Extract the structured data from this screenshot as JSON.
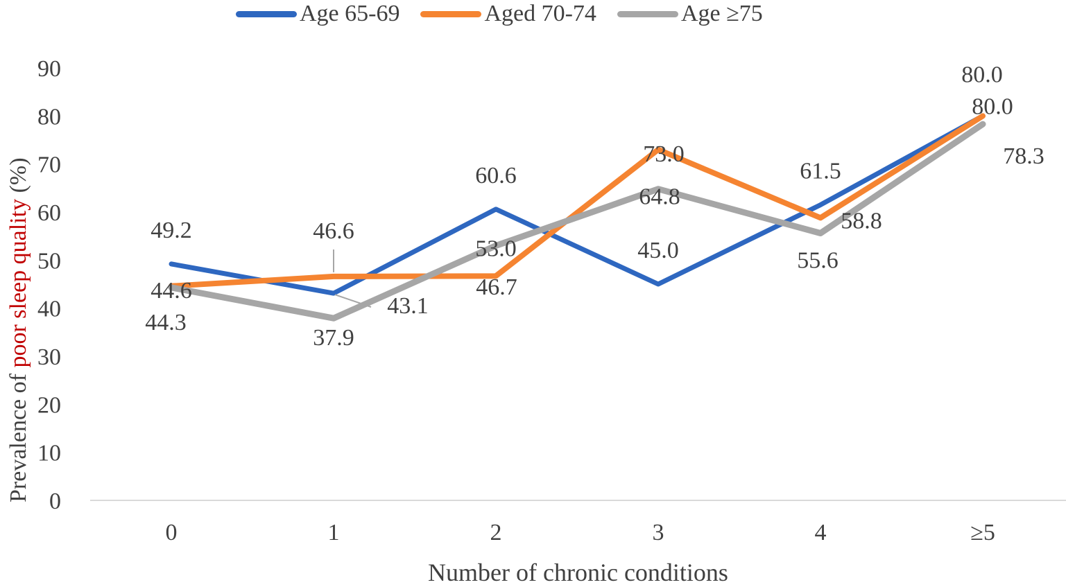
{
  "chart_data": {
    "type": "line",
    "categories": [
      "0",
      "1",
      "2",
      "3",
      "4",
      "≥5"
    ],
    "xlabel": "Number of chronic conditions",
    "ylabel": {
      "prefix": "Prevalence of ",
      "highlight": "poor sleep quality",
      "suffix": " (%)"
    },
    "ylim": [
      0,
      90
    ],
    "yticks": [
      "0",
      "10",
      "20",
      "30",
      "40",
      "50",
      "60",
      "70",
      "80",
      "90"
    ],
    "grid": false,
    "legend_position": "top",
    "series": [
      {
        "name": "Age 65-69",
        "color": "#2e67c0",
        "values": [
          49.2,
          43.1,
          60.6,
          45.0,
          61.5,
          80.0
        ],
        "labels": [
          "49.2",
          "43.1",
          "60.6",
          "45.0",
          "61.5",
          "80.0"
        ]
      },
      {
        "name": "Aged 70-74",
        "color": "#f58431",
        "values": [
          44.6,
          46.6,
          46.7,
          73.0,
          58.8,
          80.0
        ],
        "labels": [
          "44.6",
          "46.6",
          "46.7",
          "73.0",
          "58.8",
          "80.0"
        ]
      },
      {
        "name": "Age ≥75",
        "color": "#a6a6a6",
        "values": [
          44.3,
          37.9,
          53.0,
          64.8,
          55.6,
          78.3
        ],
        "labels": [
          "44.3",
          "37.9",
          "53.0",
          "64.8",
          "55.6",
          "78.3"
        ]
      }
    ]
  }
}
